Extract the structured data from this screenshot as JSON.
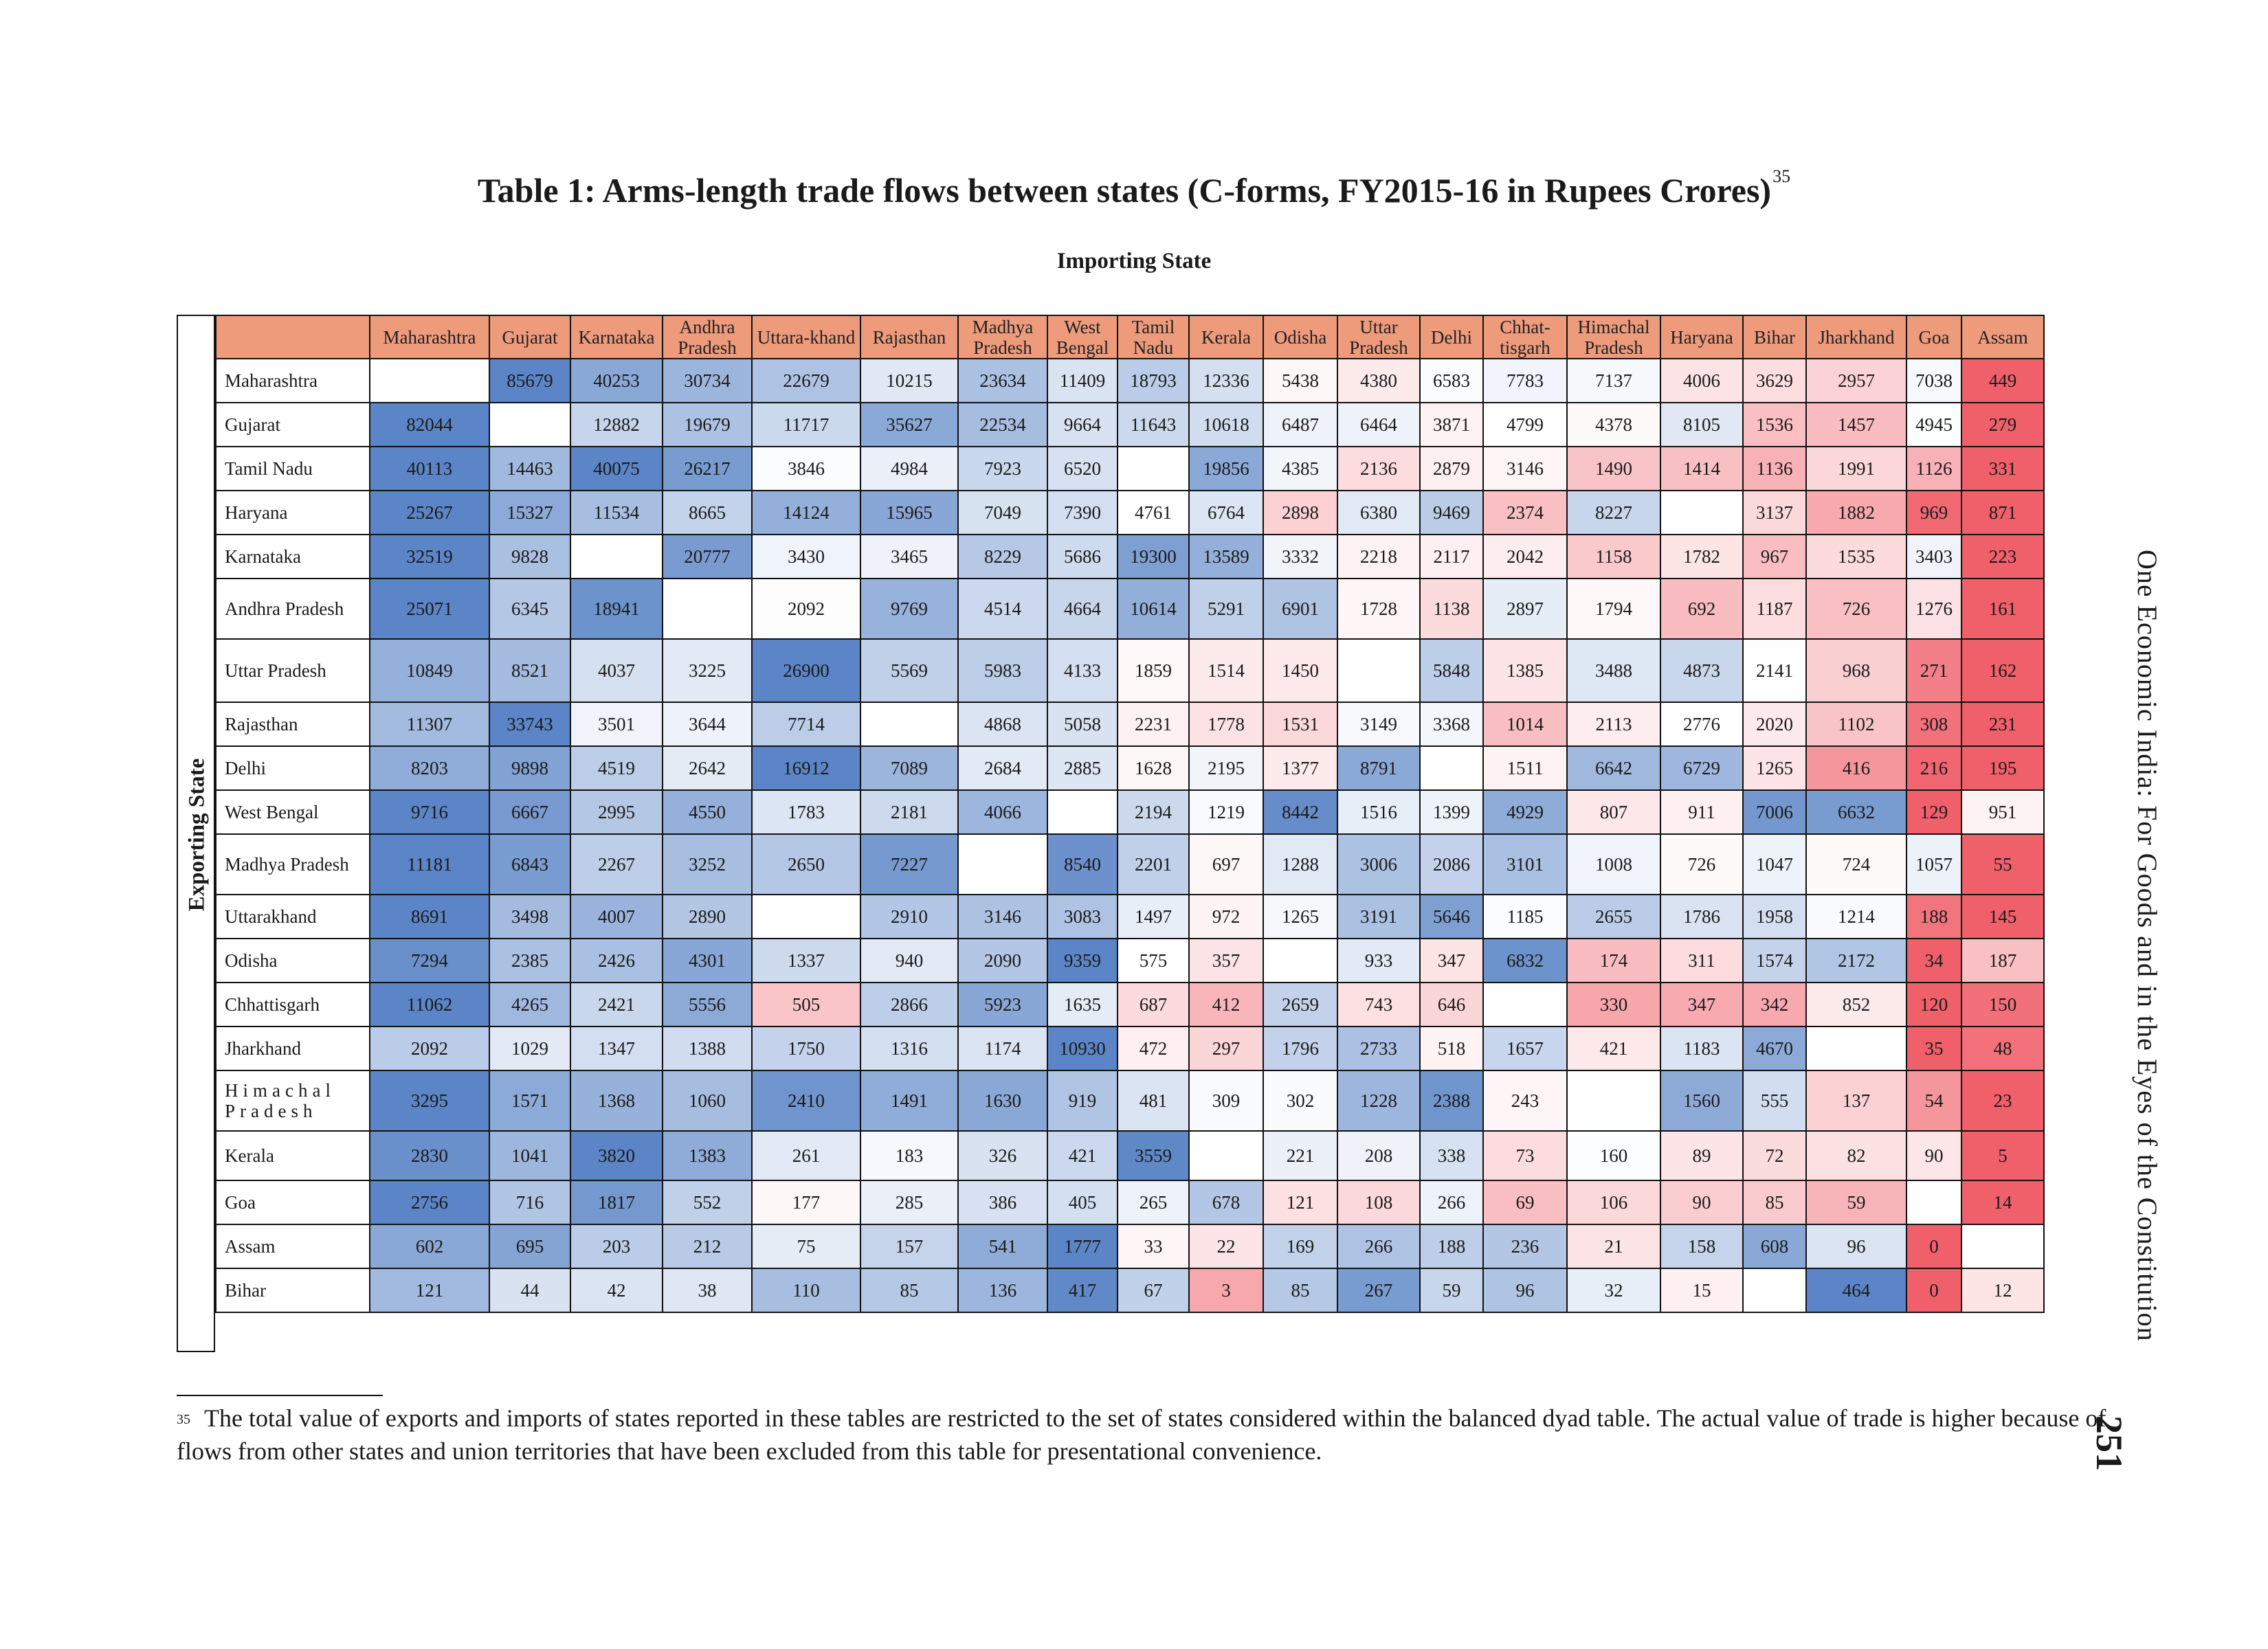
{
  "title": "Table 1: Arms-length trade flows between states (C-forms, FY2015-16 in Rupees Crores)",
  "title_footnote_ref": "35",
  "column_group_label": "Importing State",
  "row_group_label": "Exporting State",
  "columns": [
    "Maharashtra",
    "Gujarat",
    "Karnataka",
    "Andhra Pradesh",
    "Uttara-khand",
    "Rajasthan",
    "Madhya Pradesh",
    "West Bengal",
    "Tamil Nadu",
    "Kerala",
    "Odisha",
    "Uttar Pradesh",
    "Delhi",
    "Chhat-tisgarh",
    "Himachal Pradesh",
    "Haryana",
    "Bihar",
    "Jharkhand",
    "Goa",
    "Assam"
  ],
  "rows": [
    {
      "label": "Maharashtra",
      "cells": [
        "",
        "85679",
        "40253",
        "30734",
        "22679",
        "10215",
        "23634",
        "11409",
        "18793",
        "12336",
        "5438",
        "4380",
        "6583",
        "7783",
        "7137",
        "4006",
        "3629",
        "2957",
        "7038",
        "449"
      ]
    },
    {
      "label": "Gujarat",
      "cells": [
        "82044",
        "",
        "12882",
        "19679",
        "11717",
        "35627",
        "22534",
        "9664",
        "11643",
        "10618",
        "6487",
        "6464",
        "3871",
        "4799",
        "4378",
        "8105",
        "1536",
        "1457",
        "4945",
        "279"
      ]
    },
    {
      "label": "Tamil Nadu",
      "cells": [
        "40113",
        "14463",
        "40075",
        "26217",
        "3846",
        "4984",
        "7923",
        "6520",
        "",
        "19856",
        "4385",
        "2136",
        "2879",
        "3146",
        "1490",
        "1414",
        "1136",
        "1991",
        "1126",
        "331"
      ]
    },
    {
      "label": "Haryana",
      "cells": [
        "25267",
        "15327",
        "11534",
        "8665",
        "14124",
        "15965",
        "7049",
        "7390",
        "4761",
        "6764",
        "2898",
        "6380",
        "9469",
        "2374",
        "8227",
        "",
        "3137",
        "1882",
        "969",
        "871"
      ]
    },
    {
      "label": "Karnataka",
      "cells": [
        "32519",
        "9828",
        "",
        "20777",
        "3430",
        "3465",
        "8229",
        "5686",
        "19300",
        "13589",
        "3332",
        "2218",
        "2117",
        "2042",
        "1158",
        "1782",
        "967",
        "1535",
        "3403",
        "223"
      ]
    },
    {
      "label": "Andhra Pradesh",
      "cells": [
        "25071",
        "6345",
        "18941",
        "",
        "2092",
        "9769",
        "4514",
        "4664",
        "10614",
        "5291",
        "6901",
        "1728",
        "1138",
        "2897",
        "1794",
        "692",
        "1187",
        "726",
        "1276",
        "161"
      ]
    },
    {
      "label": "Uttar Pradesh",
      "cells": [
        "10849",
        "8521",
        "4037",
        "3225",
        "26900",
        "5569",
        "5983",
        "4133",
        "1859",
        "1514",
        "1450",
        "",
        "5848",
        "1385",
        "3488",
        "4873",
        "2141",
        "968",
        "271",
        "162"
      ]
    },
    {
      "label": "Rajasthan",
      "cells": [
        "11307",
        "33743",
        "3501",
        "3644",
        "7714",
        "",
        "4868",
        "5058",
        "2231",
        "1778",
        "1531",
        "3149",
        "3368",
        "1014",
        "2113",
        "2776",
        "2020",
        "1102",
        "308",
        "231"
      ]
    },
    {
      "label": "Delhi",
      "cells": [
        "8203",
        "9898",
        "4519",
        "2642",
        "16912",
        "7089",
        "2684",
        "2885",
        "1628",
        "2195",
        "1377",
        "8791",
        "",
        "1511",
        "6642",
        "6729",
        "1265",
        "416",
        "216",
        "195"
      ]
    },
    {
      "label": "West Bengal",
      "cells": [
        "9716",
        "6667",
        "2995",
        "4550",
        "1783",
        "2181",
        "4066",
        "",
        "2194",
        "1219",
        "8442",
        "1516",
        "1399",
        "4929",
        "807",
        "911",
        "7006",
        "6632",
        "129",
        "951"
      ]
    },
    {
      "label": "Madhya Pradesh",
      "cells": [
        "11181",
        "6843",
        "2267",
        "3252",
        "2650",
        "7227",
        "",
        "8540",
        "2201",
        "697",
        "1288",
        "3006",
        "2086",
        "3101",
        "1008",
        "726",
        "1047",
        "724",
        "1057",
        "55"
      ]
    },
    {
      "label": "Uttarakhand",
      "cells": [
        "8691",
        "3498",
        "4007",
        "2890",
        "",
        "2910",
        "3146",
        "3083",
        "1497",
        "972",
        "1265",
        "3191",
        "5646",
        "1185",
        "2655",
        "1786",
        "1958",
        "1214",
        "188",
        "145"
      ]
    },
    {
      "label": "Odisha",
      "cells": [
        "7294",
        "2385",
        "2426",
        "4301",
        "1337",
        "940",
        "2090",
        "9359",
        "575",
        "357",
        "",
        "933",
        "347",
        "6832",
        "174",
        "311",
        "1574",
        "2172",
        "34",
        "187"
      ]
    },
    {
      "label": "Chhattisgarh",
      "cells": [
        "11062",
        "4265",
        "2421",
        "5556",
        "505",
        "2866",
        "5923",
        "1635",
        "687",
        "412",
        "2659",
        "743",
        "646",
        "",
        "330",
        "347",
        "342",
        "852",
        "120",
        "150"
      ]
    },
    {
      "label": "Jharkhand",
      "cells": [
        "2092",
        "1029",
        "1347",
        "1388",
        "1750",
        "1316",
        "1174",
        "10930",
        "472",
        "297",
        "1796",
        "2733",
        "518",
        "1657",
        "421",
        "1183",
        "4670",
        "",
        "35",
        "48"
      ]
    },
    {
      "label": "Himachal Pradesh",
      "cells": [
        "3295",
        "1571",
        "1368",
        "1060",
        "2410",
        "1491",
        "1630",
        "919",
        "481",
        "309",
        "302",
        "1228",
        "2388",
        "243",
        "",
        "1560",
        "555",
        "137",
        "54",
        "23"
      ]
    },
    {
      "label": "Kerala",
      "cells": [
        "2830",
        "1041",
        "3820",
        "1383",
        "261",
        "183",
        "326",
        "421",
        "3559",
        "",
        "221",
        "208",
        "338",
        "73",
        "160",
        "89",
        "72",
        "82",
        "90",
        "5"
      ]
    },
    {
      "label": "Goa",
      "cells": [
        "2756",
        "716",
        "1817",
        "552",
        "177",
        "285",
        "386",
        "405",
        "265",
        "678",
        "121",
        "108",
        "266",
        "69",
        "106",
        "90",
        "85",
        "59",
        "",
        "14"
      ]
    },
    {
      "label": "Assam",
      "cells": [
        "602",
        "695",
        "203",
        "212",
        "75",
        "157",
        "541",
        "1777",
        "33",
        "22",
        "169",
        "266",
        "188",
        "236",
        "21",
        "158",
        "608",
        "96",
        "0",
        ""
      ]
    },
    {
      "label": "Bihar",
      "cells": [
        "121",
        "44",
        "42",
        "38",
        "110",
        "85",
        "136",
        "417",
        "67",
        "3",
        "85",
        "267",
        "59",
        "96",
        "32",
        "15",
        "",
        "464",
        "0",
        "12"
      ]
    }
  ],
  "colors": {
    "header_bg": "#ee9b7c",
    "high_blue": "#5b85c6",
    "neutral": "#ffffff",
    "low_red": "#f0606a"
  },
  "footnote": {
    "marker": "35",
    "text": "The total value of exports and imports of states reported in these tables are restricted to the set of states considered within the balanced dyad table. The actual value of trade is higher because of flows from other states and union territories that have been excluded from this table for presentational convenience."
  },
  "running_head": "One Economic India: For Goods and in the Eyes of the Constitution",
  "page_number": "251"
}
